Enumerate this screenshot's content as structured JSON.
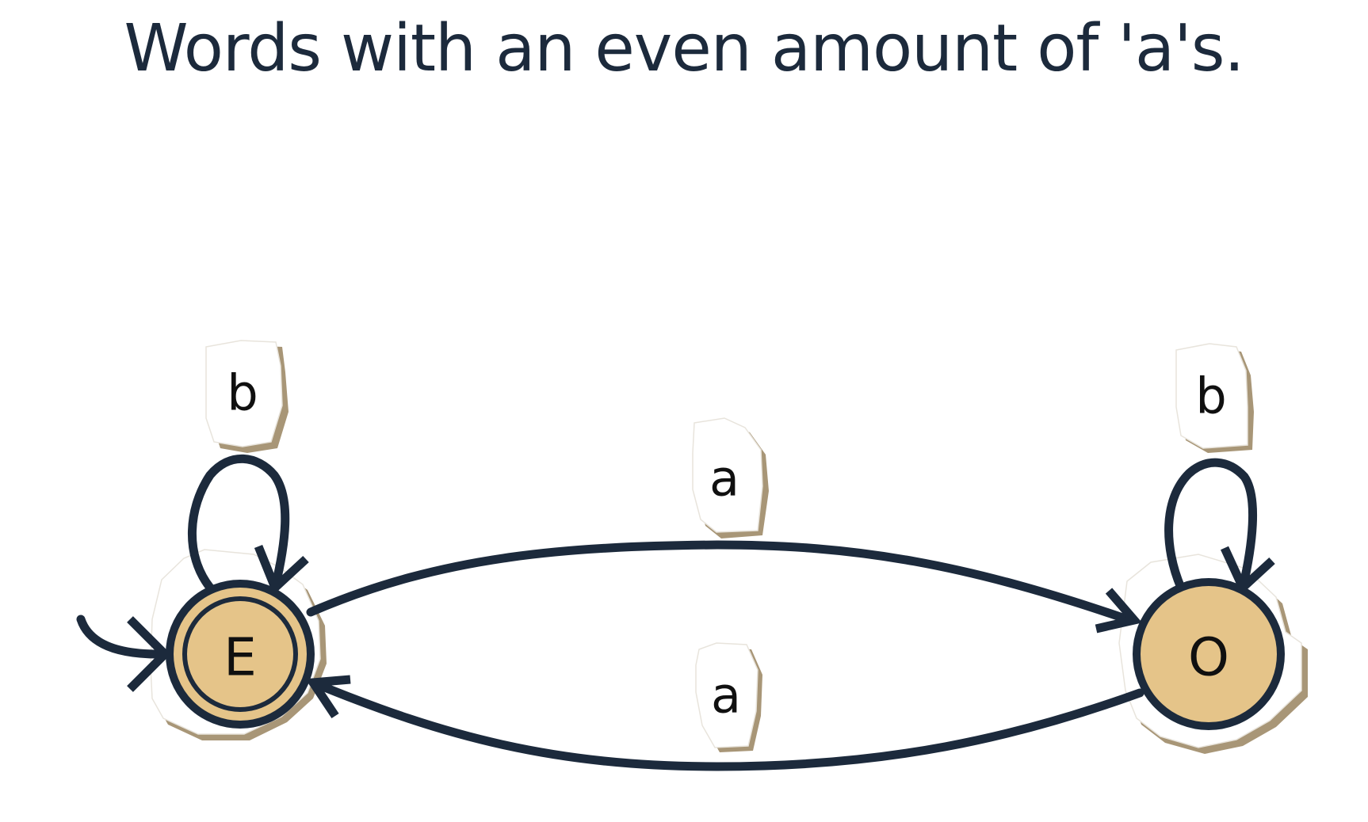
{
  "title": "Words with an even amount of 'a's.",
  "diagram": {
    "type": "finite-automaton",
    "states": [
      {
        "id": "E",
        "label": "E",
        "initial": true,
        "accepting": true
      },
      {
        "id": "O",
        "label": "O",
        "initial": false,
        "accepting": false
      }
    ],
    "transitions": [
      {
        "from": "E",
        "to": "E",
        "label": "b"
      },
      {
        "from": "E",
        "to": "O",
        "label": "a"
      },
      {
        "from": "O",
        "to": "E",
        "label": "a"
      },
      {
        "from": "O",
        "to": "O",
        "label": "b"
      }
    ],
    "colors": {
      "ink": "#1c2a3c",
      "state_fill": "#e5c489",
      "paper_shadow": "#a89677",
      "background": "#ffffff"
    }
  }
}
